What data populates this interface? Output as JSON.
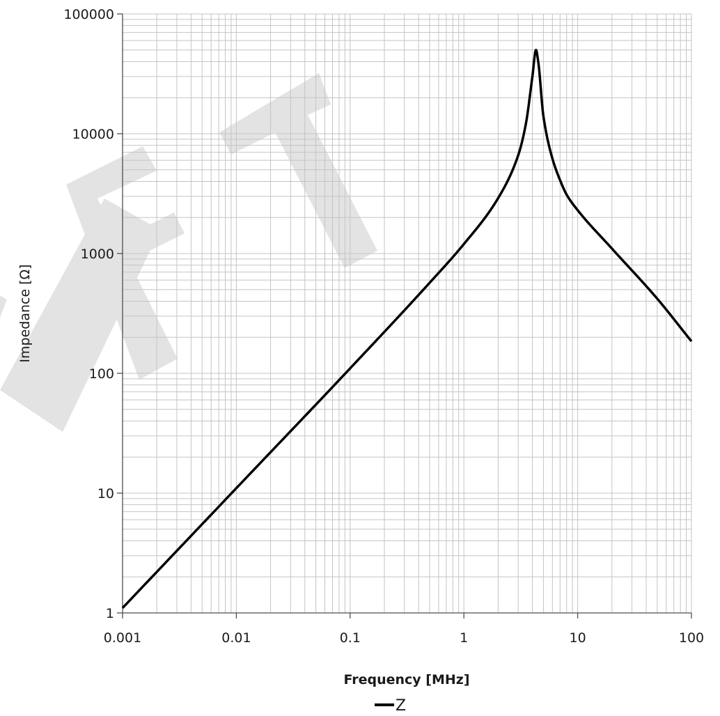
{
  "chart_data": {
    "type": "line",
    "xlabel": "Frequency [MHz]",
    "ylabel": "Impedance [Ω]",
    "x_scale": "log",
    "y_scale": "log",
    "xlim": [
      0.001,
      100
    ],
    "ylim": [
      1,
      100000
    ],
    "x_ticks": [
      "0.001",
      "0.01",
      "0.1",
      "1",
      "10",
      "100"
    ],
    "y_ticks": [
      "1",
      "10",
      "100",
      "1000",
      "10000",
      "100000"
    ],
    "grid": true,
    "legend_position": "bottom-center",
    "watermark": "DRAFT",
    "series": [
      {
        "name": "Z",
        "color": "#000000",
        "x": [
          0.001,
          0.01,
          0.1,
          0.5,
          1,
          2,
          3,
          3.5,
          4,
          4.3,
          4.5,
          5,
          6,
          7,
          8,
          10,
          20,
          50,
          100
        ],
        "y": [
          1.1,
          11,
          110,
          570,
          1200,
          2900,
          6600,
          12000,
          30000,
          50000,
          40000,
          14000,
          6200,
          4100,
          3100,
          2300,
          1100,
          420,
          185
        ]
      }
    ]
  },
  "colors": {
    "grid": "#c4c4c4",
    "axis": "#4d4d4d",
    "line": "#000000",
    "watermark": "#e3e3e3"
  }
}
